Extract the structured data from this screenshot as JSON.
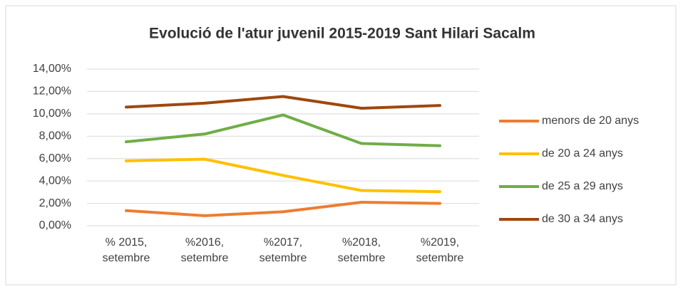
{
  "chart_data": {
    "type": "line",
    "title": "Evolució de l'atur juvenil 2015-2019 Sant Hilari Sacalm",
    "categories": [
      "% 2015, setembre",
      "%2016, setembre",
      "%2017, setembre",
      "%2018, setembre",
      "%2019, setembre"
    ],
    "series": [
      {
        "name": "menors de 20 anys",
        "color": "#ed7d31",
        "values": [
          1.35,
          0.9,
          1.25,
          2.1,
          2.0
        ]
      },
      {
        "name": "de 20 a 24 anys",
        "color": "#ffc000",
        "values": [
          5.8,
          5.95,
          4.5,
          3.15,
          3.05
        ]
      },
      {
        "name": "de 25 a 29 anys",
        "color": "#70ad47",
        "values": [
          7.5,
          8.2,
          9.9,
          7.35,
          7.15
        ]
      },
      {
        "name": "de 30 a 34 anys",
        "color": "#9e480e",
        "values": [
          10.6,
          10.95,
          11.55,
          10.5,
          10.75
        ]
      }
    ],
    "ylim": [
      0,
      14
    ],
    "yticks": [
      {
        "value": 0,
        "label": "0,00%"
      },
      {
        "value": 2,
        "label": "2,00%"
      },
      {
        "value": 4,
        "label": "4,00%"
      },
      {
        "value": 6,
        "label": "6,00%"
      },
      {
        "value": 8,
        "label": "8,00%"
      },
      {
        "value": 10,
        "label": "10,00%"
      },
      {
        "value": 12,
        "label": "12,00%"
      },
      {
        "value": 14,
        "label": "14,00%"
      }
    ],
    "grid": true,
    "legend": "right"
  }
}
